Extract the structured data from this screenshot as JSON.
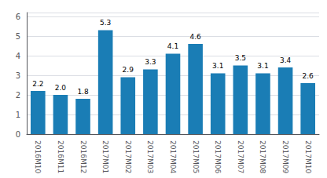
{
  "chart_data": {
    "type": "bar",
    "categories": [
      "2016M10",
      "2016M11",
      "2016M12",
      "2017M01",
      "2017M02",
      "2017M03",
      "2017M04",
      "2017M05",
      "2017M06",
      "2017M07",
      "2017M08",
      "2017M09",
      "2017M10"
    ],
    "values": [
      2.2,
      2.0,
      1.8,
      5.3,
      2.9,
      3.3,
      4.1,
      4.6,
      3.1,
      3.5,
      3.1,
      3.4,
      2.6
    ],
    "value_labels": [
      "2.2",
      "2.0",
      "1.8",
      "5.3",
      "2.9",
      "3.3",
      "4.1",
      "4.6",
      "3.1",
      "3.5",
      "3.1",
      "3.4",
      "2.6"
    ],
    "color": "#1a7db5",
    "ylim": [
      0,
      6.2
    ],
    "yticks": [
      0,
      1,
      2,
      3,
      4,
      5,
      6
    ],
    "grid": true,
    "data_labels": true
  }
}
